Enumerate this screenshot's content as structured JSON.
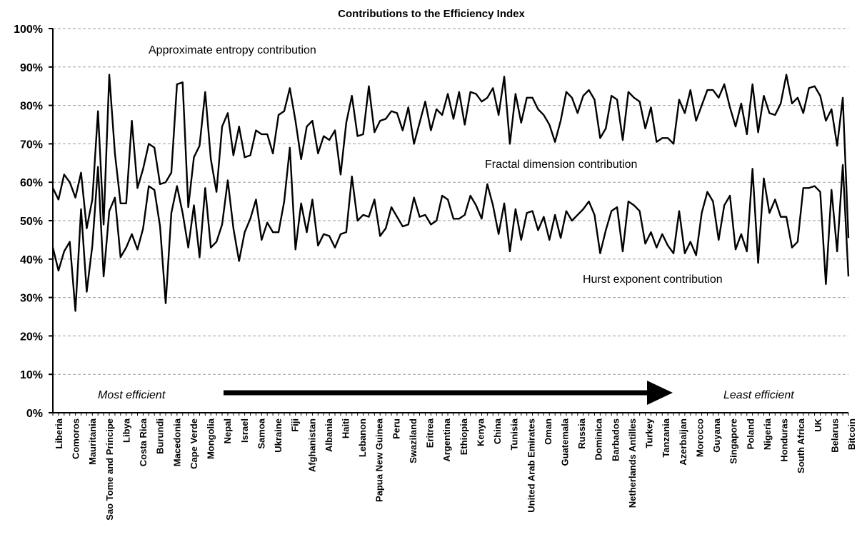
{
  "chart_data": {
    "type": "line",
    "title": "Contributions to the Efficiency Index",
    "xlabel": "",
    "ylabel": "",
    "ylim": [
      0,
      100
    ],
    "y_tick_labels": [
      "0%",
      "10%",
      "20%",
      "30%",
      "40%",
      "50%",
      "60%",
      "70%",
      "80%",
      "90%",
      "100%"
    ],
    "grid": true,
    "x_tick_labels": [
      "Liberia",
      "Comoros",
      "Mauritania",
      "Sao Tome and Principe",
      "Libya",
      "Costa Rica",
      "Burundi",
      "Macedonia",
      "Cape Verde",
      "Mongolia",
      "Nepal",
      "Israel",
      "Samoa",
      "Ukraine",
      "Fiji",
      "Afghanistan",
      "Albania",
      "Haiti",
      "Lebanon",
      "Papua New Guinea",
      "Peru",
      "Swaziland",
      "Eritrea",
      "Argentina",
      "Ethiopia",
      "Kenya",
      "China",
      "Tunisia",
      "United Arab Emirates",
      "Oman",
      "Guatemala",
      "Russia",
      "Dominica",
      "Barbados",
      "Netherlands Antilles",
      "Turkey",
      "Tanzania",
      "Azerbaijan",
      "Morocco",
      "Guyana",
      "Singapore",
      "Poland",
      "Nigeria",
      "Honduras",
      "South Africa",
      "UK",
      "Belarus",
      "Bitcoin"
    ],
    "series": [
      {
        "label": "Approximate entropy contribution",
        "values": [
          58.5,
          55.5,
          62,
          60,
          56,
          62.5,
          48,
          55.5,
          78.5,
          49,
          88,
          67.5,
          54.5,
          54.5,
          76,
          58.5,
          63.5,
          70,
          69,
          59.5,
          60,
          62.5,
          85.5,
          86,
          53.5,
          66.5,
          69.5,
          83.5,
          66,
          57.5,
          74.5,
          78,
          67,
          74.5,
          66.5,
          67,
          73.5,
          72.5,
          72.5,
          67.5,
          77.5,
          78.5,
          84.5,
          76,
          66,
          74.5,
          76,
          67.5,
          72,
          71,
          73.5,
          62,
          75.5,
          82.5,
          72,
          72.5,
          85,
          73,
          76,
          76.5,
          78.5,
          78,
          73.5,
          79.5,
          70,
          75.5,
          81,
          73.5,
          79,
          77.5,
          83,
          76.5,
          83.5,
          75,
          83.5,
          83,
          81,
          82,
          84.5,
          77.5,
          87.5,
          70,
          83,
          75.5,
          82,
          82,
          79,
          77.5,
          75,
          70.5,
          76,
          83.5,
          82,
          78,
          82.5,
          84,
          81.5,
          71.5,
          74,
          82.5,
          81.5,
          71,
          83.5,
          82,
          81,
          74,
          79.5,
          70.5,
          71.5,
          71.5,
          70,
          81.5,
          78,
          84,
          76,
          80,
          84,
          84,
          82,
          85.5,
          79.5,
          74.5,
          80.5,
          72.5,
          85.5,
          73,
          82.5,
          78,
          77.5,
          80.5,
          88,
          80.5,
          82,
          78,
          84.5,
          85,
          82.5,
          76,
          79,
          69.5,
          82,
          45.5
        ],
        "color": "#000000"
      },
      {
        "label": "Fractal dimension contribution / Hurst exponent contribution",
        "values": [
          43,
          37,
          42,
          44.5,
          26.5,
          53,
          31.5,
          43.5,
          64,
          35.5,
          52.5,
          56,
          40.5,
          43,
          46.5,
          42.5,
          48,
          59,
          58,
          48.5,
          28.5,
          52,
          59,
          52,
          43,
          54,
          40.5,
          58.5,
          43,
          44.5,
          49,
          60.5,
          48,
          39.5,
          47,
          50.5,
          55.5,
          45,
          49.5,
          47,
          47,
          55,
          69,
          42.5,
          54.5,
          47,
          55.5,
          43.5,
          46.5,
          46,
          43,
          46.5,
          47,
          61.5,
          50,
          51.5,
          51,
          55.5,
          46,
          48,
          53.5,
          51,
          48.5,
          49,
          56,
          51,
          51.5,
          49,
          50,
          56.5,
          55.5,
          50.5,
          50.5,
          51.5,
          56.5,
          54,
          50.5,
          59.5,
          54,
          46.5,
          54.5,
          42,
          53,
          45,
          52,
          52.5,
          47.5,
          51,
          45,
          51.5,
          45.5,
          52.5,
          50,
          51.5,
          53,
          55,
          51.5,
          41.5,
          47.5,
          52.5,
          53.5,
          42,
          55,
          54,
          52.5,
          44,
          47,
          43,
          46.5,
          43.5,
          41.5,
          52.5,
          41.5,
          44.5,
          41,
          52,
          57.5,
          55,
          45,
          54,
          56.5,
          42.5,
          46.5,
          42,
          63.5,
          39,
          61,
          52,
          55.5,
          51,
          51,
          43,
          44.5,
          58.5,
          58.5,
          59,
          57.5,
          33.5,
          58,
          42,
          64.5,
          35.5
        ],
        "color": "#000000"
      }
    ],
    "annotations": {
      "entropy": "Approximate entropy contribution",
      "fractal": "Fractal dimension contribution",
      "hurst": "Hurst exponent contribution",
      "most_efficient": "Most efficient",
      "least_efficient": "Least efficient"
    }
  }
}
